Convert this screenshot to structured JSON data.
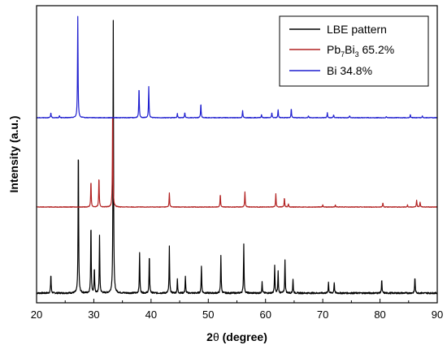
{
  "chart_data": {
    "type": "line",
    "xlabel_prefix": "2",
    "xlabel_theta": "θ",
    "xlabel_suffix": " (degree)",
    "ylabel": "Intensity (a.u.)",
    "xlim": [
      20,
      90
    ],
    "xticks": [
      "20",
      "30",
      "40",
      "50",
      "60",
      "70",
      "80",
      "90"
    ],
    "legend_position": "top-right",
    "series": [
      {
        "name": "LBE pattern",
        "color": "#000000",
        "peaks": [
          [
            22.5,
            0.07
          ],
          [
            27.3,
            0.55
          ],
          [
            29.5,
            0.26
          ],
          [
            30.1,
            0.09
          ],
          [
            31.0,
            0.21
          ],
          [
            33.4,
            1.0
          ],
          [
            38.0,
            0.15
          ],
          [
            39.7,
            0.14
          ],
          [
            43.2,
            0.17
          ],
          [
            44.6,
            0.05
          ],
          [
            46.0,
            0.06
          ],
          [
            48.8,
            0.1
          ],
          [
            52.2,
            0.14
          ],
          [
            56.2,
            0.18
          ],
          [
            59.4,
            0.04
          ],
          [
            61.6,
            0.1
          ],
          [
            62.2,
            0.08
          ],
          [
            63.4,
            0.12
          ],
          [
            64.8,
            0.05
          ],
          [
            71.0,
            0.04
          ],
          [
            72.0,
            0.04
          ],
          [
            80.3,
            0.05
          ],
          [
            86.1,
            0.06
          ]
        ]
      },
      {
        "name_base": "Pb",
        "name_sub1": "7",
        "name_mid": "Bi",
        "name_sub2": "3",
        "name_rest": " 65.2%",
        "color": "#b22222",
        "peaks": [
          [
            29.5,
            0.26
          ],
          [
            30.9,
            0.3
          ],
          [
            33.3,
            1.0
          ],
          [
            43.2,
            0.14
          ],
          [
            52.1,
            0.13
          ],
          [
            56.4,
            0.15
          ],
          [
            61.8,
            0.13
          ],
          [
            63.3,
            0.09
          ],
          [
            64.0,
            0.03
          ],
          [
            70.0,
            0.02
          ],
          [
            72.2,
            0.02
          ],
          [
            80.5,
            0.04
          ],
          [
            84.8,
            0.02
          ],
          [
            86.4,
            0.07
          ],
          [
            87.0,
            0.05
          ]
        ]
      },
      {
        "name": "Bi 34.8%",
        "color": "#1f1fcf",
        "peaks": [
          [
            22.5,
            0.05
          ],
          [
            24.0,
            0.02
          ],
          [
            27.2,
            1.0
          ],
          [
            37.9,
            0.3
          ],
          [
            39.6,
            0.31
          ],
          [
            44.6,
            0.04
          ],
          [
            45.9,
            0.05
          ],
          [
            48.7,
            0.14
          ],
          [
            56.0,
            0.07
          ],
          [
            59.3,
            0.03
          ],
          [
            61.1,
            0.05
          ],
          [
            62.2,
            0.08
          ],
          [
            64.5,
            0.09
          ],
          [
            67.5,
            0.02
          ],
          [
            70.8,
            0.05
          ],
          [
            71.9,
            0.03
          ],
          [
            74.7,
            0.02
          ],
          [
            81.1,
            0.01
          ],
          [
            85.3,
            0.03
          ],
          [
            87.4,
            0.02
          ]
        ]
      }
    ]
  }
}
